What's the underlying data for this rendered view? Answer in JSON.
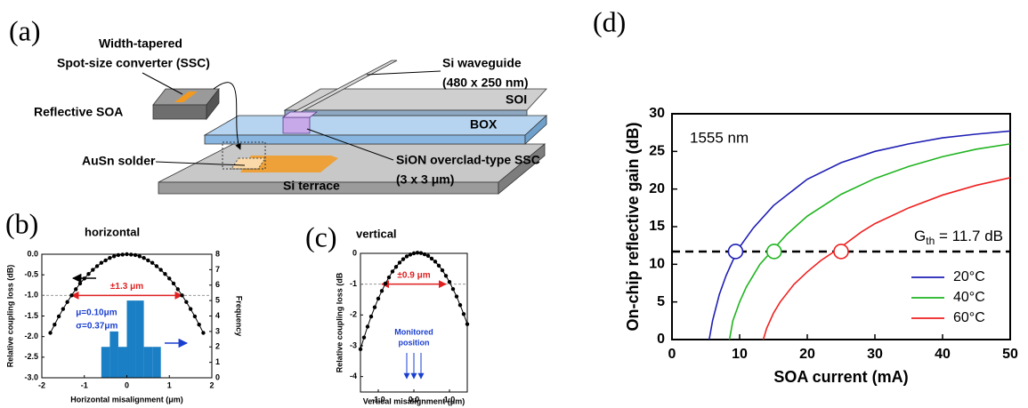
{
  "diagram": {
    "panel_label": "(a)",
    "ssc_label": [
      "Width-tapered",
      "Spot-size converter (SSC)"
    ],
    "soa_label": "Reflective SOA",
    "waveguide_label": [
      "Si waveguide",
      "(480 x 250 nm)"
    ],
    "soi_label": "SOI",
    "box_label": "BOX",
    "solder_label": "AuSn solder",
    "sion_label": [
      "SiON overclad-type SSC",
      "(3 x 3 μm)"
    ],
    "terrace_label": "Si terrace"
  },
  "chart_data": [
    {
      "type": "line",
      "panel_label": "(b)",
      "title": "horizontal",
      "xlabel": "Horizontal misalignment (μm)",
      "ylabel": "Relative coupling loss (dB)",
      "y2label": "Frequency",
      "xlim": [
        -2,
        2
      ],
      "xticks": [
        -2,
        -1,
        0,
        1,
        2
      ],
      "ylim": [
        -3,
        0
      ],
      "yticks": [
        {
          "value": -3,
          "label": "-3.0"
        },
        {
          "value": -2.5,
          "label": "-2.5"
        },
        {
          "value": -2,
          "label": "-2.0"
        },
        {
          "value": -1.5,
          "label": "-1.5"
        },
        {
          "value": -1,
          "label": "-1.0"
        },
        {
          "value": -0.5,
          "label": "-0.5"
        },
        {
          "value": 0,
          "label": "0.0"
        }
      ],
      "y2lim": [
        0,
        8
      ],
      "y2ticks": [
        0,
        1,
        2,
        3,
        4,
        5,
        6,
        7,
        8
      ],
      "color": "#000000",
      "markers": true,
      "x": [
        -1.8,
        -1.7,
        -1.6,
        -1.5,
        -1.4,
        -1.3,
        -1.2,
        -1.1,
        -1.0,
        -0.9,
        -0.8,
        -0.7,
        -0.6,
        -0.5,
        -0.4,
        -0.3,
        -0.2,
        -0.1,
        0,
        0.1,
        0.2,
        0.3,
        0.4,
        0.5,
        0.6,
        0.7,
        0.8,
        0.9,
        1.0,
        1.1,
        1.2,
        1.3,
        1.4,
        1.5,
        1.6,
        1.7,
        1.8
      ],
      "values": [
        -1.91,
        -1.71,
        -1.51,
        -1.33,
        -1.16,
        -1.0,
        -0.85,
        -0.71,
        -0.59,
        -0.48,
        -0.38,
        -0.29,
        -0.21,
        -0.15,
        -0.09,
        -0.05,
        -0.02,
        -0.01,
        0,
        -0.01,
        -0.02,
        -0.05,
        -0.09,
        -0.15,
        -0.21,
        -0.29,
        -0.38,
        -0.48,
        -0.59,
        -0.71,
        -0.85,
        -1.0,
        -1.16,
        -1.33,
        -1.51,
        -1.71,
        -1.91
      ],
      "threshold": -1,
      "range_arrow": [
        -1.3,
        1.3
      ],
      "range_label": "±1.3 μm",
      "histogram": {
        "bins": [
          -0.6,
          -0.4,
          -0.2,
          0,
          0.2,
          0.4,
          0.6,
          0.8
        ],
        "counts": [
          2,
          3,
          2,
          5,
          5,
          2,
          2
        ],
        "color": "#1a7fc4",
        "axis": "y2"
      },
      "stats": [
        "μ=0.10μm",
        "σ=0.37μm"
      ]
    },
    {
      "type": "line",
      "panel_label": "(c)",
      "title": "vertical",
      "xlabel": "Vertical misalignment (μm)",
      "ylabel": "Relative coupling loss (dB",
      "xlim": [
        -1.5,
        1.5
      ],
      "xticks": [
        {
          "value": -1,
          "label": "-1.0"
        },
        {
          "value": 0,
          "label": "0.0"
        },
        {
          "value": 1,
          "label": "1.0"
        }
      ],
      "ylim": [
        -4.5,
        0
      ],
      "yticks": [
        -4,
        -3,
        -2,
        -1,
        0
      ],
      "color": "#000000",
      "markers": true,
      "x": [
        -1.5,
        -1.4,
        -1.3,
        -1.2,
        -1.1,
        -1.0,
        -0.9,
        -0.8,
        -0.7,
        -0.6,
        -0.5,
        -0.4,
        -0.3,
        -0.2,
        -0.1,
        0,
        0.1,
        0.2,
        0.3,
        0.4,
        0.5,
        0.6,
        0.7,
        0.8,
        0.9,
        1.0,
        1.1,
        1.2,
        1.3,
        1.4,
        1.5
      ],
      "values": [
        -3.11,
        -2.73,
        -2.38,
        -2.05,
        -1.75,
        -1.47,
        -1.22,
        -0.98,
        -0.78,
        -0.59,
        -0.44,
        -0.3,
        -0.19,
        -0.1,
        -0.04,
        0,
        0.02,
        0.01,
        -0.03,
        -0.08,
        -0.17,
        -0.27,
        -0.4,
        -0.55,
        -0.73,
        -0.93,
        -1.16,
        -1.4,
        -1.68,
        -1.97,
        -2.3
      ],
      "threshold": -1,
      "range_arrow": [
        -0.9,
        0.9
      ],
      "range_label": "±0.9 μm",
      "monitored_label": [
        "Monitored",
        "position"
      ],
      "monitored_x": [
        -0.2,
        0,
        0.2
      ]
    },
    {
      "type": "line",
      "panel_label": "(d)",
      "annotation": "1555 nm",
      "xlabel": "SOA current (mA)",
      "ylabel": "On-chip reflective gain (dB)",
      "xlim": [
        0,
        50
      ],
      "xticks": [
        0,
        10,
        20,
        30,
        40,
        50
      ],
      "ylim": [
        0,
        30
      ],
      "yticks": [
        0,
        5,
        10,
        15,
        20,
        25,
        30
      ],
      "threshold": 11.7,
      "threshold_label": {
        "symbol": "G",
        "subscript": "th",
        "text": " = 11.7 dB"
      },
      "legend": "lower right",
      "series": [
        {
          "name": "20°C",
          "color": "#1f1fb4",
          "marker_x": 9.4,
          "x": [
            5.5,
            6,
            7,
            8,
            9,
            10,
            12,
            15,
            20,
            25,
            30,
            35,
            40,
            45,
            50
          ],
          "values": [
            0,
            2.5,
            6,
            8.5,
            10.5,
            12.3,
            14.8,
            17.8,
            21.3,
            23.5,
            25,
            26,
            26.8,
            27.3,
            27.7
          ]
        },
        {
          "name": "40°C",
          "color": "#1fb41f",
          "marker_x": 15.1,
          "x": [
            8.5,
            9,
            10,
            11,
            12,
            13,
            15,
            17,
            20,
            25,
            30,
            35,
            40,
            45,
            50
          ],
          "values": [
            0,
            2.5,
            5,
            7,
            8.5,
            10,
            12,
            14,
            16.4,
            19.3,
            21.4,
            23,
            24.3,
            25.3,
            26
          ]
        },
        {
          "name": "60°C",
          "color": "#f02020",
          "marker_x": 25,
          "x": [
            13.5,
            14,
            15,
            16,
            18,
            20,
            22,
            25,
            28,
            30,
            35,
            40,
            45,
            50
          ],
          "values": [
            0,
            1.5,
            3.5,
            5,
            7.3,
            9,
            10.5,
            12.3,
            14.3,
            15.4,
            17.5,
            19.2,
            20.5,
            21.5
          ]
        }
      ]
    }
  ]
}
